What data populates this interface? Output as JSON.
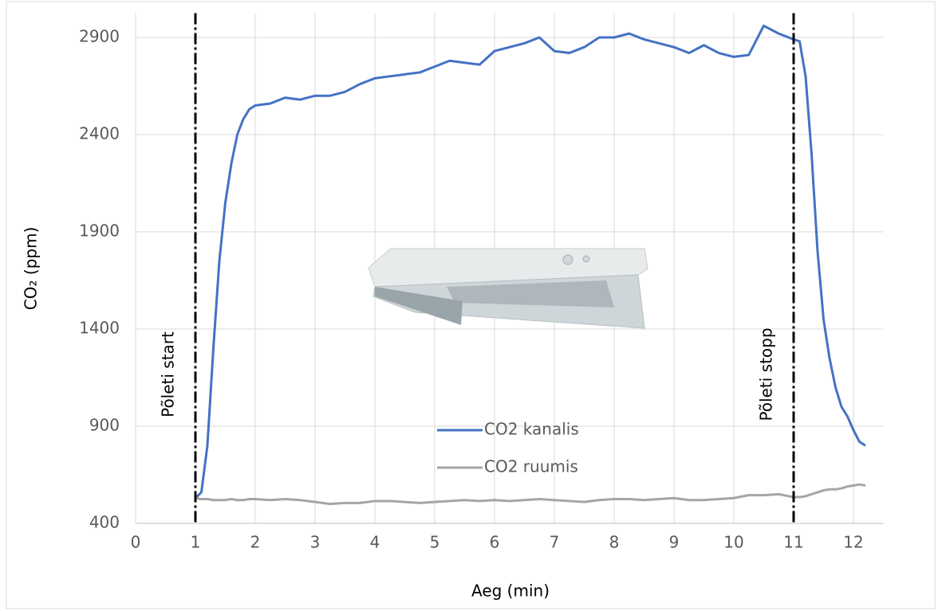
{
  "chart_data": {
    "type": "line",
    "x_label": "Aeg (min)",
    "y_label": "CO₂ (ppm)",
    "x": [
      1,
      1.1,
      1.2,
      1.3,
      1.4,
      1.5,
      1.6,
      1.7,
      1.8,
      1.9,
      2,
      2.25,
      2.5,
      2.75,
      3,
      3.25,
      3.5,
      3.75,
      4,
      4.25,
      4.5,
      4.75,
      5,
      5.25,
      5.5,
      5.75,
      6,
      6.25,
      6.5,
      6.75,
      7,
      7.25,
      7.5,
      7.75,
      8,
      8.25,
      8.5,
      8.75,
      9,
      9.25,
      9.5,
      9.75,
      10,
      10.25,
      10.5,
      10.75,
      11,
      11.1,
      11.2,
      11.3,
      11.4,
      11.5,
      11.6,
      11.7,
      11.8,
      11.9,
      12,
      12.1,
      12.2
    ],
    "series": [
      {
        "name": "CO2 kanalis",
        "color": "#4472c4",
        "values": [
          530,
          560,
          800,
          1300,
          1750,
          2050,
          2250,
          2400,
          2480,
          2530,
          2550,
          2560,
          2590,
          2580,
          2600,
          2600,
          2620,
          2660,
          2690,
          2700,
          2710,
          2720,
          2750,
          2780,
          2770,
          2760,
          2830,
          2850,
          2870,
          2900,
          2830,
          2820,
          2850,
          2900,
          2900,
          2920,
          2890,
          2870,
          2850,
          2820,
          2860,
          2820,
          2800,
          2810,
          2960,
          2920,
          2890,
          2880,
          2700,
          2300,
          1800,
          1450,
          1250,
          1100,
          1000,
          950,
          880,
          820,
          800
        ]
      },
      {
        "name": "CO2 ruumis",
        "color": "#a5a5a5",
        "values": [
          530,
          525,
          525,
          520,
          520,
          520,
          525,
          520,
          520,
          525,
          525,
          520,
          525,
          520,
          510,
          500,
          505,
          505,
          515,
          515,
          510,
          505,
          510,
          515,
          520,
          515,
          520,
          515,
          520,
          525,
          520,
          515,
          510,
          520,
          525,
          525,
          520,
          525,
          530,
          520,
          520,
          525,
          530,
          545,
          545,
          550,
          535,
          535,
          540,
          550,
          560,
          570,
          575,
          575,
          580,
          590,
          595,
          600,
          595
        ]
      }
    ],
    "xlim": [
      0,
      12.5
    ],
    "xticks": [
      0,
      1,
      2,
      3,
      4,
      5,
      6,
      7,
      8,
      9,
      10,
      11,
      12
    ],
    "ylim": [
      400,
      3025
    ],
    "yticks": [
      400,
      900,
      1400,
      1900,
      2400,
      2900
    ],
    "grid": true,
    "legend": "center",
    "annotations": [
      {
        "x": 1,
        "label": "Põleti start"
      },
      {
        "x": 11,
        "label": "Põleti stopp"
      }
    ]
  }
}
